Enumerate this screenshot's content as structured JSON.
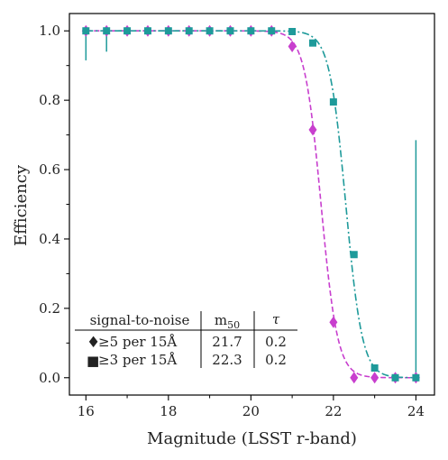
{
  "chart_data": {
    "type": "scatter",
    "xlabel": "Magnitude (LSST r-band)",
    "ylabel": "Efficiency",
    "xlim": [
      15.6,
      24.45
    ],
    "ylim": [
      -0.05,
      1.05
    ],
    "xticks": [
      "16",
      "18",
      "20",
      "22",
      "24"
    ],
    "yticks": [
      "0.0",
      "0.2",
      "0.4",
      "0.6",
      "0.8",
      "1.0"
    ],
    "grid": false,
    "series": [
      {
        "marker": "diamond",
        "color": "#c83fce",
        "line_style": "dashed",
        "m50": 21.7,
        "tau": 0.2,
        "x": [
          16.0,
          16.5,
          17.0,
          17.5,
          18.0,
          18.5,
          19.0,
          19.5,
          20.0,
          20.5,
          21.0,
          21.5,
          22.0,
          22.5,
          23.0,
          23.5,
          24.0
        ],
        "y": [
          1.0,
          1.0,
          1.0,
          1.0,
          1.0,
          1.0,
          1.0,
          1.0,
          1.0,
          1.0,
          0.955,
          0.715,
          0.16,
          0.0,
          0.0,
          0.0,
          0.0
        ]
      },
      {
        "marker": "square",
        "color": "#1e9a9a",
        "line_style": "dashdot",
        "m50": 22.3,
        "tau": 0.2,
        "x": [
          16.0,
          16.5,
          17.0,
          17.5,
          18.0,
          18.5,
          19.0,
          19.5,
          20.0,
          20.5,
          21.0,
          21.5,
          22.0,
          22.5,
          23.0,
          23.5,
          24.0
        ],
        "y": [
          1.0,
          1.0,
          1.0,
          1.0,
          1.0,
          1.0,
          1.0,
          1.0,
          1.0,
          1.0,
          0.998,
          0.965,
          0.795,
          0.355,
          0.028,
          0.0,
          0.0
        ],
        "errorbars": [
          {
            "x": 16.0,
            "low": 0.915,
            "high": 1.0
          },
          {
            "x": 16.5,
            "low": 0.94,
            "high": 1.0
          },
          {
            "x": 24.0,
            "low": 0.0,
            "high": 0.685
          }
        ]
      }
    ],
    "table": {
      "headers": [
        "signal-to-noise",
        "m50",
        "τ"
      ],
      "rows": [
        {
          "marker": "♦",
          "label": "≥5 per 15Å",
          "m50": "21.7",
          "tau": "0.2"
        },
        {
          "marker": "■",
          "label": "≥3 per 15Å",
          "m50": "22.3",
          "tau": "0.2"
        }
      ]
    }
  }
}
